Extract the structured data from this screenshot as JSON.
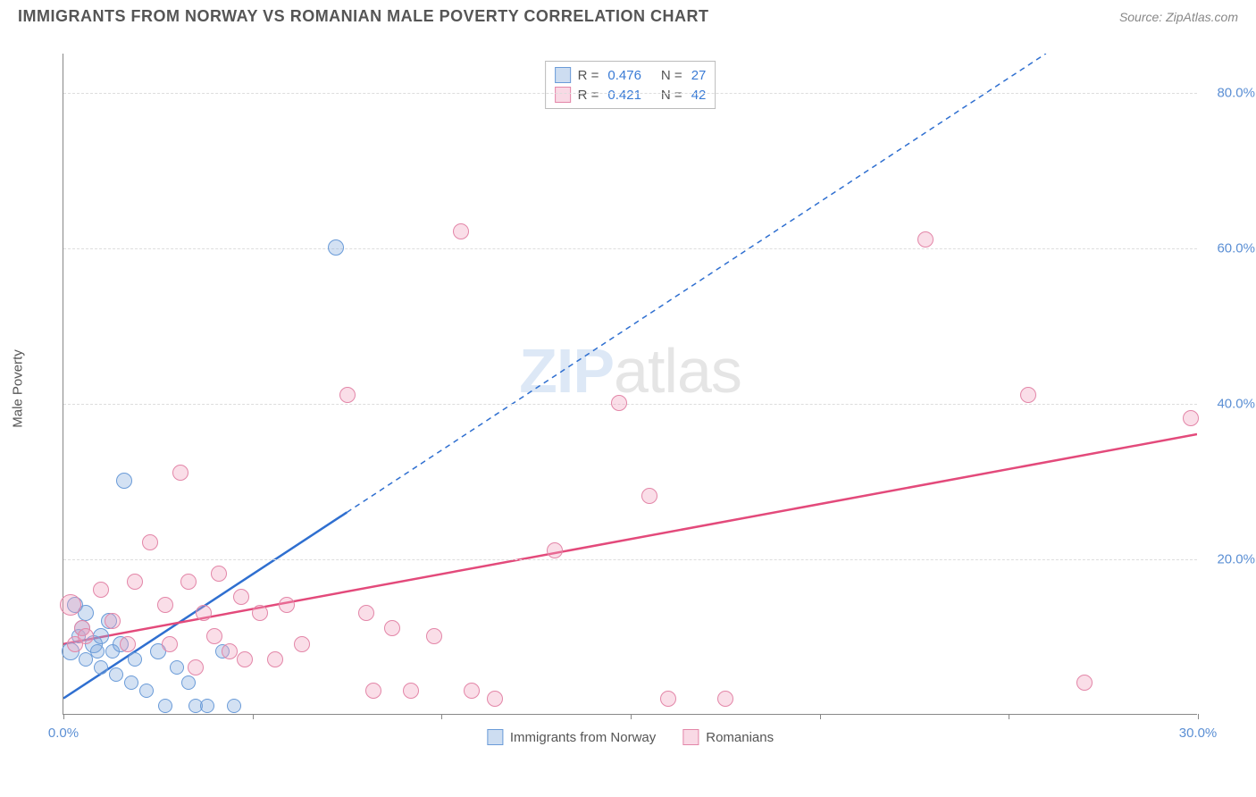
{
  "title": "IMMIGRANTS FROM NORWAY VS ROMANIAN MALE POVERTY CORRELATION CHART",
  "source": "Source: ZipAtlas.com",
  "watermark": {
    "part1": "ZIP",
    "part2": "atlas"
  },
  "chart": {
    "type": "scatter",
    "y_axis_label": "Male Poverty",
    "xlim": [
      0,
      30
    ],
    "ylim": [
      0,
      85
    ],
    "x_ticks": [
      0,
      5,
      10,
      15,
      20,
      25,
      30
    ],
    "x_tick_labels": [
      "0.0%",
      "",
      "",
      "",
      "",
      "",
      "30.0%"
    ],
    "y_ticks": [
      20,
      40,
      60,
      80
    ],
    "y_tick_labels": [
      "20.0%",
      "40.0%",
      "60.0%",
      "80.0%"
    ],
    "grid_color": "#dddddd",
    "axis_color": "#888888",
    "background_color": "#ffffff",
    "tick_label_color": "#5b8fd4",
    "tick_label_fontsize": 15,
    "series": [
      {
        "key": "norway",
        "label": "Immigrants from Norway",
        "color_fill": "rgba(130,170,220,0.35)",
        "color_stroke": "#6a9bd8",
        "trend_color": "#2f6fd0",
        "trend_width": 2.5,
        "trend_dash_after_x": 7.5,
        "marker_radius": 8,
        "R": "0.476",
        "N": "27",
        "trend": {
          "x1": 0,
          "y1": 2,
          "x2": 26,
          "y2": 85
        },
        "points": [
          {
            "x": 0.2,
            "y": 8,
            "r": 10
          },
          {
            "x": 0.3,
            "y": 14,
            "r": 9
          },
          {
            "x": 0.4,
            "y": 10,
            "r": 8
          },
          {
            "x": 0.5,
            "y": 11,
            "r": 9
          },
          {
            "x": 0.6,
            "y": 7,
            "r": 8
          },
          {
            "x": 0.6,
            "y": 13,
            "r": 9
          },
          {
            "x": 0.8,
            "y": 9,
            "r": 10
          },
          {
            "x": 0.9,
            "y": 8,
            "r": 8
          },
          {
            "x": 1.0,
            "y": 10,
            "r": 9
          },
          {
            "x": 1.0,
            "y": 6,
            "r": 8
          },
          {
            "x": 1.2,
            "y": 12,
            "r": 9
          },
          {
            "x": 1.3,
            "y": 8,
            "r": 8
          },
          {
            "x": 1.4,
            "y": 5,
            "r": 8
          },
          {
            "x": 1.5,
            "y": 9,
            "r": 9
          },
          {
            "x": 1.6,
            "y": 30,
            "r": 9
          },
          {
            "x": 1.8,
            "y": 4,
            "r": 8
          },
          {
            "x": 1.9,
            "y": 7,
            "r": 8
          },
          {
            "x": 2.2,
            "y": 3,
            "r": 8
          },
          {
            "x": 2.5,
            "y": 8,
            "r": 9
          },
          {
            "x": 2.7,
            "y": 1,
            "r": 8
          },
          {
            "x": 3.0,
            "y": 6,
            "r": 8
          },
          {
            "x": 3.3,
            "y": 4,
            "r": 8
          },
          {
            "x": 3.5,
            "y": 1,
            "r": 8
          },
          {
            "x": 3.8,
            "y": 1,
            "r": 8
          },
          {
            "x": 4.2,
            "y": 8,
            "r": 8
          },
          {
            "x": 4.5,
            "y": 1,
            "r": 8
          },
          {
            "x": 7.2,
            "y": 60,
            "r": 9
          }
        ]
      },
      {
        "key": "romanians",
        "label": "Romanians",
        "color_fill": "rgba(240,160,190,0.35)",
        "color_stroke": "#e386a8",
        "trend_color": "#e34a7b",
        "trend_width": 2.5,
        "marker_radius": 9,
        "R": "0.421",
        "N": "42",
        "trend": {
          "x1": 0,
          "y1": 9,
          "x2": 30,
          "y2": 36
        },
        "points": [
          {
            "x": 0.2,
            "y": 14,
            "r": 12
          },
          {
            "x": 0.3,
            "y": 9,
            "r": 9
          },
          {
            "x": 0.5,
            "y": 11,
            "r": 9
          },
          {
            "x": 0.6,
            "y": 10,
            "r": 9
          },
          {
            "x": 1.0,
            "y": 16,
            "r": 9
          },
          {
            "x": 1.3,
            "y": 12,
            "r": 9
          },
          {
            "x": 1.7,
            "y": 9,
            "r": 9
          },
          {
            "x": 1.9,
            "y": 17,
            "r": 9
          },
          {
            "x": 2.3,
            "y": 22,
            "r": 9
          },
          {
            "x": 2.7,
            "y": 14,
            "r": 9
          },
          {
            "x": 2.8,
            "y": 9,
            "r": 9
          },
          {
            "x": 3.1,
            "y": 31,
            "r": 9
          },
          {
            "x": 3.3,
            "y": 17,
            "r": 9
          },
          {
            "x": 3.5,
            "y": 6,
            "r": 9
          },
          {
            "x": 3.7,
            "y": 13,
            "r": 9
          },
          {
            "x": 4.0,
            "y": 10,
            "r": 9
          },
          {
            "x": 4.1,
            "y": 18,
            "r": 9
          },
          {
            "x": 4.4,
            "y": 8,
            "r": 9
          },
          {
            "x": 4.7,
            "y": 15,
            "r": 9
          },
          {
            "x": 4.8,
            "y": 7,
            "r": 9
          },
          {
            "x": 5.2,
            "y": 13,
            "r": 9
          },
          {
            "x": 5.6,
            "y": 7,
            "r": 9
          },
          {
            "x": 5.9,
            "y": 14,
            "r": 9
          },
          {
            "x": 6.3,
            "y": 9,
            "r": 9
          },
          {
            "x": 7.5,
            "y": 41,
            "r": 9
          },
          {
            "x": 8.0,
            "y": 13,
            "r": 9
          },
          {
            "x": 8.2,
            "y": 3,
            "r": 9
          },
          {
            "x": 8.7,
            "y": 11,
            "r": 9
          },
          {
            "x": 9.2,
            "y": 3,
            "r": 9
          },
          {
            "x": 9.8,
            "y": 10,
            "r": 9
          },
          {
            "x": 10.5,
            "y": 62,
            "r": 9
          },
          {
            "x": 10.8,
            "y": 3,
            "r": 9
          },
          {
            "x": 11.4,
            "y": 2,
            "r": 9
          },
          {
            "x": 13.0,
            "y": 21,
            "r": 9
          },
          {
            "x": 14.7,
            "y": 40,
            "r": 9
          },
          {
            "x": 15.5,
            "y": 28,
            "r": 9
          },
          {
            "x": 16.0,
            "y": 2,
            "r": 9
          },
          {
            "x": 22.8,
            "y": 61,
            "r": 9
          },
          {
            "x": 25.5,
            "y": 41,
            "r": 9
          },
          {
            "x": 27.0,
            "y": 4,
            "r": 9
          },
          {
            "x": 29.8,
            "y": 38,
            "r": 9
          },
          {
            "x": 17.5,
            "y": 2,
            "r": 9
          }
        ]
      }
    ],
    "legend_bottom": [
      {
        "key": "norway",
        "label": "Immigrants from Norway"
      },
      {
        "key": "romanians",
        "label": "Romanians"
      }
    ]
  }
}
